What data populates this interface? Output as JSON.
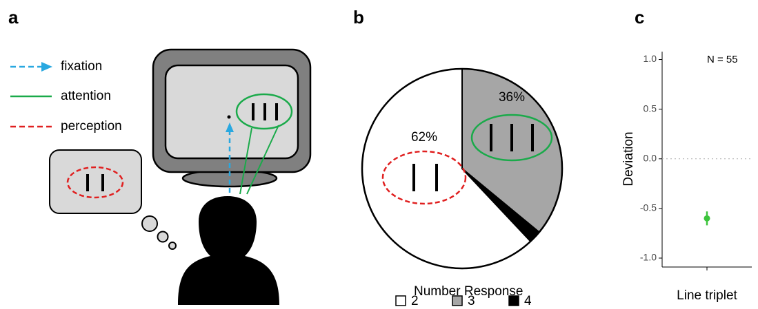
{
  "panel_labels": [
    "a",
    "b",
    "c"
  ],
  "legend": [
    "fixation",
    "attention",
    "perception"
  ],
  "chart_data": [
    {
      "type": "pie",
      "categories": [
        "2",
        "3",
        "4"
      ],
      "values": [
        62,
        36,
        2
      ],
      "value_labels": [
        "62%",
        "36%",
        null
      ],
      "colors": [
        "#ffffff",
        "#a6a6a6",
        "#000000"
      ],
      "legend_title": "Number Response"
    },
    {
      "type": "point",
      "categories": [
        "Line triplet"
      ],
      "values": [
        -0.6
      ],
      "errors": [
        0.07
      ],
      "color": "#3cc43c",
      "ylabel": "Deviation",
      "annotation": "N = 55",
      "ylim": [
        -1.09,
        1.08
      ],
      "yticks": [
        {
          "value": 1,
          "label": "1.0"
        },
        0.5,
        {
          "value": 0,
          "label": "0.0"
        },
        -0.5,
        {
          "value": -1,
          "label": "-1.0"
        }
      ],
      "hline": 0
    }
  ]
}
